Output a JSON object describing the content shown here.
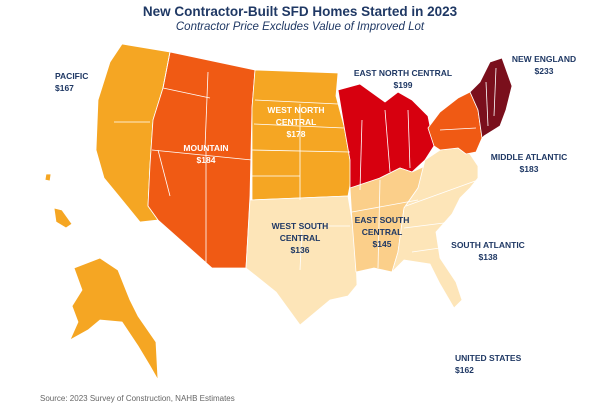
{
  "header": {
    "title": "New Contractor-Built SFD Homes Started in 2023",
    "subtitle": "Contractor Price Excludes Value of Improved Lot"
  },
  "palette": {
    "pacific": "#f5a623",
    "mountain": "#f05a14",
    "west_north_central": "#f5a623",
    "east_north_central": "#d7000f",
    "new_england": "#7a0f1c",
    "middle_atlantic": "#f05a14",
    "west_south_central": "#fde5b8",
    "east_south_central": "#fbcf8a",
    "south_atlantic": "#fde5b8",
    "state_border": "#ffffff"
  },
  "regions": {
    "pacific": {
      "name": "PACIFIC",
      "price": "$167"
    },
    "mountain": {
      "name": "MOUNTAIN",
      "price": "$184"
    },
    "west_north_central": {
      "name_line1": "WEST NORTH",
      "name_line2": "CENTRAL",
      "price": "$178"
    },
    "east_north_central": {
      "name": "EAST NORTH CENTRAL",
      "price": "$199"
    },
    "new_england": {
      "name": "NEW ENGLAND",
      "price": "$233"
    },
    "middle_atlantic": {
      "name": "MIDDLE ATLANTIC",
      "price": "$183"
    },
    "west_south_central": {
      "name_line1": "WEST SOUTH",
      "name_line2": "CENTRAL",
      "price": "$136"
    },
    "east_south_central": {
      "name_line1": "EAST SOUTH",
      "name_line2": "CENTRAL",
      "price": "$145"
    },
    "south_atlantic": {
      "name": "SOUTH ATLANTIC",
      "price": "$138"
    },
    "united_states": {
      "name": "UNITED STATES",
      "price": "$162"
    }
  },
  "footer": {
    "source": "Source: 2023 Survey of Construction, NAHB Estimates"
  }
}
